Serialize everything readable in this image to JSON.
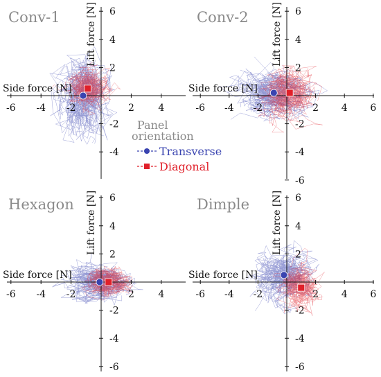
{
  "colors": {
    "transverse": "#3a44b0",
    "diagonal": "#e0202a",
    "title": "#8a8a8a",
    "axis": "#111111"
  },
  "legend": {
    "title_line1": "Panel",
    "title_line2": "orientation",
    "items": [
      {
        "label": "Transverse",
        "color": "#3a44b0",
        "marker": "circle"
      },
      {
        "label": "Diagonal",
        "color": "#e0202a",
        "marker": "square"
      }
    ]
  },
  "chart_data": [
    {
      "type": "scatter",
      "title": "Conv-1",
      "xlabel": "Side force [N]",
      "ylabel": "Lift force [N]",
      "xlim": [
        -6,
        6
      ],
      "ylim": [
        -6,
        6
      ],
      "x_ticks": [
        -6,
        -4,
        -2,
        2,
        4
      ],
      "y_ticks": [
        6,
        4,
        2,
        -2,
        -4
      ],
      "series": [
        {
          "name": "Transverse",
          "x": [
            -1.2
          ],
          "y": [
            0.0
          ],
          "spread": [
            2.2,
            3.5
          ]
        },
        {
          "name": "Diagonal",
          "x": [
            -0.9
          ],
          "y": [
            0.5
          ],
          "spread": [
            1.6,
            1.5
          ]
        }
      ]
    },
    {
      "type": "scatter",
      "title": "Conv-2",
      "xlabel": "Side force [N]",
      "ylabel": "Lift force [N]",
      "xlim": [
        -6,
        6
      ],
      "ylim": [
        -6,
        6
      ],
      "x_ticks": [
        -6,
        -4,
        -2,
        2,
        4,
        6
      ],
      "y_ticks": [
        6,
        4,
        2,
        -2,
        -4,
        -6
      ],
      "series": [
        {
          "name": "Transverse",
          "x": [
            -0.9
          ],
          "y": [
            0.2
          ],
          "spread": [
            3.0,
            2.0
          ]
        },
        {
          "name": "Diagonal",
          "x": [
            0.2
          ],
          "y": [
            0.2
          ],
          "spread": [
            2.2,
            2.0
          ]
        }
      ]
    },
    {
      "type": "scatter",
      "title": "Hexagon",
      "xlabel": "Side force [N]",
      "ylabel": "Lift force [N]",
      "xlim": [
        -6,
        6
      ],
      "ylim": [
        -6,
        6
      ],
      "x_ticks": [
        -6,
        -4,
        -2,
        2,
        4
      ],
      "y_ticks": [
        6,
        4,
        2,
        -2,
        -4,
        -6
      ],
      "series": [
        {
          "name": "Transverse",
          "x": [
            -0.1
          ],
          "y": [
            0.0
          ],
          "spread": [
            2.6,
            1.6
          ]
        },
        {
          "name": "Diagonal",
          "x": [
            0.5
          ],
          "y": [
            0.0
          ],
          "spread": [
            1.6,
            1.2
          ]
        }
      ]
    },
    {
      "type": "scatter",
      "title": "Dimple",
      "xlabel": "Side force [N]",
      "ylabel": "Lift force [N]",
      "xlim": [
        -6,
        6
      ],
      "ylim": [
        -6,
        6
      ],
      "x_ticks": [
        -6,
        -4,
        -2,
        2,
        4,
        6
      ],
      "y_ticks": [
        6,
        4,
        2,
        -2,
        -4,
        -6
      ],
      "series": [
        {
          "name": "Transverse",
          "x": [
            -0.2
          ],
          "y": [
            0.5
          ],
          "spread": [
            2.4,
            2.0
          ]
        },
        {
          "name": "Diagonal",
          "x": [
            1.0
          ],
          "y": [
            -0.4
          ],
          "spread": [
            1.6,
            1.6
          ]
        }
      ]
    }
  ]
}
